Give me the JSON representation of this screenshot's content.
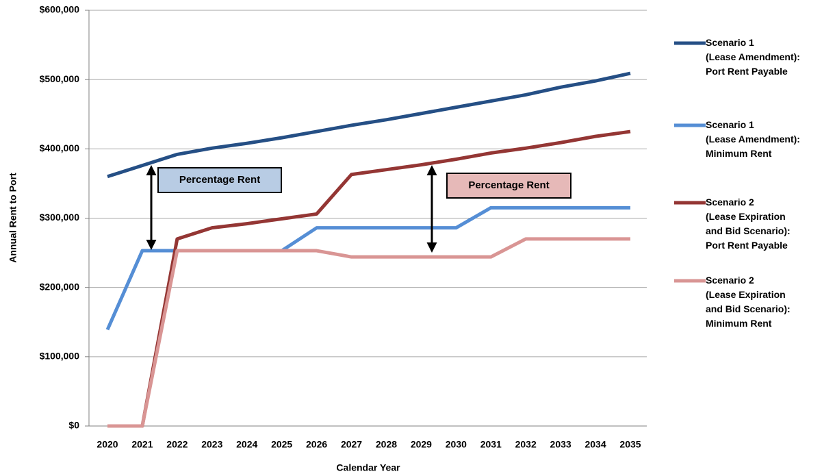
{
  "chart_data": {
    "type": "line",
    "y_label": "Annual Rent to Port",
    "x_label": "Calendar Year",
    "categories": [
      "2020",
      "2021",
      "2022",
      "2023",
      "2024",
      "2025",
      "2026",
      "2027",
      "2028",
      "2029",
      "2030",
      "2031",
      "2032",
      "2033",
      "2034",
      "2035"
    ],
    "series": [
      {
        "name": "Scenario 1\n(Lease Amendment):\nPort Rent Payable",
        "color": "#254f85",
        "values": [
          360000,
          376000,
          392000,
          401000,
          408000,
          416000,
          425000,
          434000,
          442000,
          451000,
          460000,
          469000,
          478000,
          489000,
          498000,
          509000
        ]
      },
      {
        "name": "Scenario 1\n(Lease Amendment):\nMinimum Rent",
        "color": "#558ed5",
        "values": [
          139000,
          253000,
          253000,
          253000,
          253000,
          253000,
          286000,
          286000,
          286000,
          286000,
          286000,
          315000,
          315000,
          315000,
          315000,
          315000
        ]
      },
      {
        "name": "Scenario 2\n(Lease Expiration\nand Bid Scenario):\nPort Rent Payable",
        "color": "#943634",
        "values": [
          0,
          0,
          270000,
          286000,
          292000,
          299000,
          306000,
          363000,
          370000,
          377000,
          385000,
          394000,
          401000,
          409000,
          418000,
          425000
        ]
      },
      {
        "name": "Scenario 2\n(Lease Expiration\nand Bid Scenario):\nMinimum Rent",
        "color": "#d99594",
        "values": [
          0,
          0,
          253000,
          253000,
          253000,
          253000,
          253000,
          244000,
          244000,
          244000,
          244000,
          244000,
          270000,
          270000,
          270000,
          270000
        ]
      }
    ],
    "ylim": [
      0,
      600000
    ],
    "yticks": [
      {
        "value": 0,
        "label": "$0"
      },
      {
        "value": 100000,
        "label": "$100,000"
      },
      {
        "value": 200000,
        "label": "$200,000"
      },
      {
        "value": 300000,
        "label": "$300,000"
      },
      {
        "value": 400000,
        "label": "$400,000"
      },
      {
        "value": 500000,
        "label": "$500,000"
      },
      {
        "value": 600000,
        "label": "$600,000"
      }
    ],
    "grid": true,
    "annotations": [
      "Percentage Rent",
      "Percentage Rent"
    ]
  }
}
